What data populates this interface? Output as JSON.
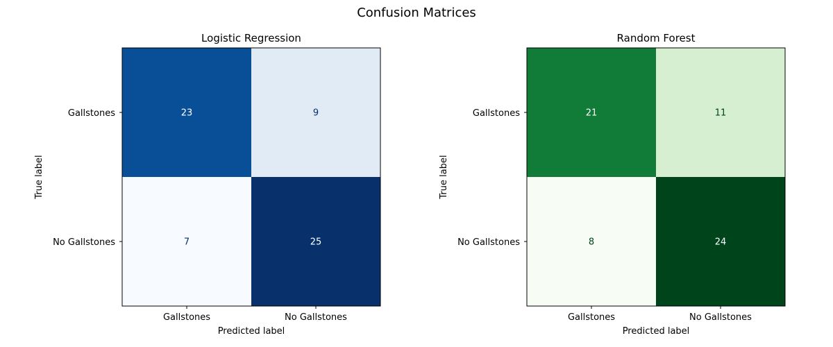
{
  "figure": {
    "title": "Confusion Matrices"
  },
  "chart_data": [
    {
      "type": "heatmap",
      "title": "Logistic Regression",
      "xlabel": "Predicted label",
      "ylabel": "True label",
      "x_categories": [
        "Gallstones",
        "No Gallstones"
      ],
      "y_categories": [
        "Gallstones",
        "No Gallstones"
      ],
      "values": [
        [
          23,
          9
        ],
        [
          7,
          25
        ]
      ],
      "colormap": "Blues",
      "colors": {
        "low": "#f7fbff",
        "high": "#08306b",
        "cells": [
          [
            "#084f98",
            "#e1ebf6"
          ],
          [
            "#f7fbff",
            "#08306b"
          ]
        ],
        "text_on_dark": "#ffffff",
        "text_on_light": "#08306b"
      },
      "colorbar": false
    },
    {
      "type": "heatmap",
      "title": "Random Forest",
      "xlabel": "Predicted label",
      "ylabel": "True label",
      "x_categories": [
        "Gallstones",
        "No Gallstones"
      ],
      "y_categories": [
        "Gallstones",
        "No Gallstones"
      ],
      "values": [
        [
          21,
          11
        ],
        [
          8,
          24
        ]
      ],
      "colormap": "Greens",
      "colors": {
        "low": "#f7fcf5",
        "high": "#00441b",
        "cells": [
          [
            "#117b38",
            "#d5efd0"
          ],
          [
            "#f7fcf5",
            "#00441b"
          ]
        ],
        "text_on_dark": "#ffffff",
        "text_on_light": "#00441b"
      },
      "colorbar": false
    }
  ]
}
